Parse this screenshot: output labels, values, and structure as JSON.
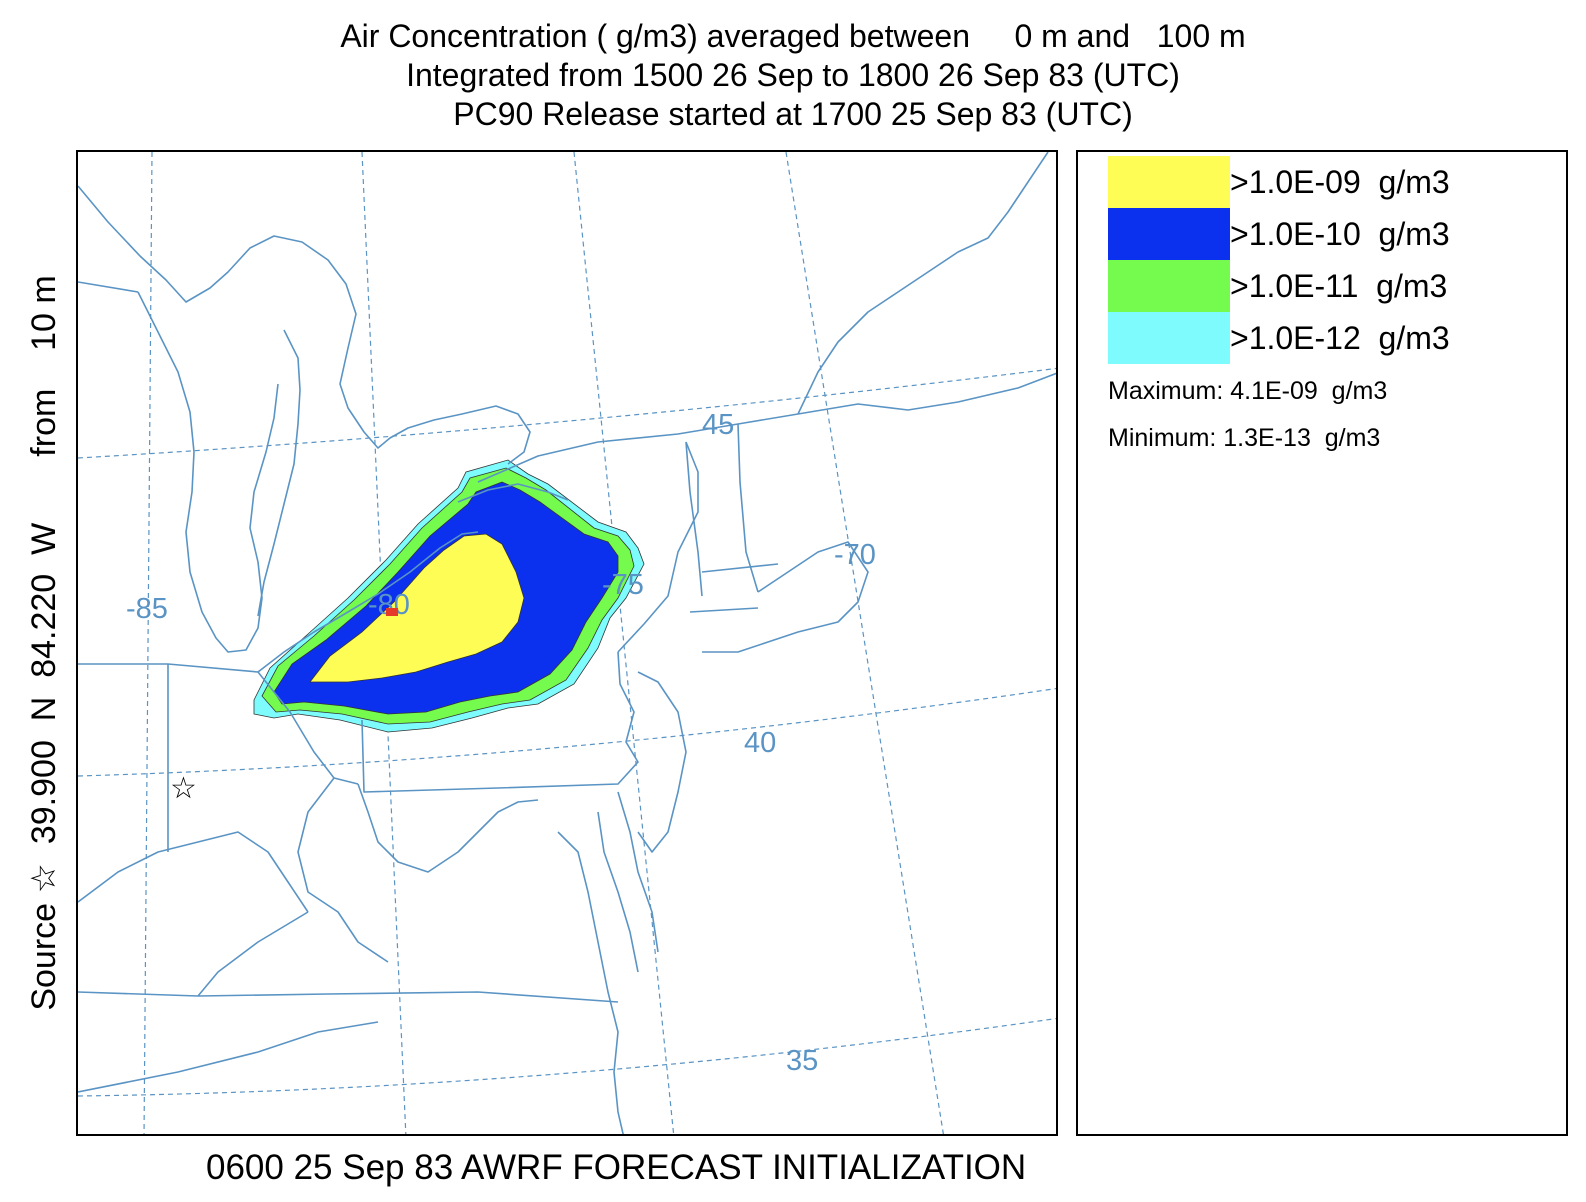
{
  "header": {
    "line1": "Air Concentration ( g/m3) averaged between     0 m and   100 m",
    "line2": "Integrated from 1500 26 Sep to 1800 26 Sep 83 (UTC)",
    "line3": "PC90 Release started at 1700 25 Sep 83 (UTC)"
  },
  "side_label": "Source ☆  39.900  N  84.220  W       from    10 m",
  "bottom_label": "0600 25 Sep 83 AWRF FORECAST INITIALIZATION",
  "legend": {
    "entries": [
      {
        "label": ">1.0E-09  g/m3",
        "color": "#fdfd55"
      },
      {
        "label": ">1.0E-10  g/m3",
        "color": "#0c31ee"
      },
      {
        "label": ">1.0E-11  g/m3",
        "color": "#74fb4d"
      },
      {
        "label": ">1.0E-12  g/m3",
        "color": "#7efcfd"
      }
    ],
    "maximum": "Maximum: 4.1E-09  g/m3",
    "minimum": "Minimum: 1.3E-13  g/m3"
  },
  "map": {
    "line_color": "#5a94c4",
    "grid_labels": {
      "lon_85": "-85",
      "lon_80": "-80",
      "lon_75": "-75",
      "lon_70": "-70",
      "lat_45": "45",
      "lat_40": "40",
      "lat_35": "35"
    },
    "source_marker": "☆"
  }
}
